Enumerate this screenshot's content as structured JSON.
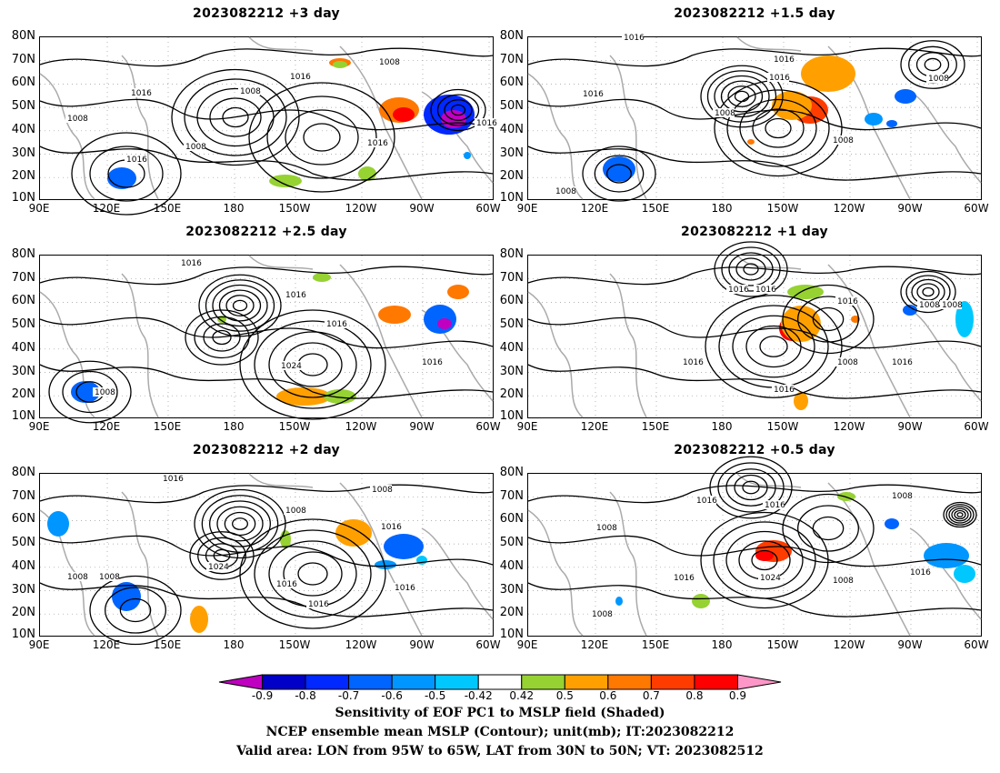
{
  "panels": [
    {
      "title": "2023082212 +3 day",
      "contour_labels": [
        "1008",
        "1016",
        "1008",
        "1016",
        "1008",
        "1016",
        "1016",
        "1016",
        "1008"
      ]
    },
    {
      "title": "2023082212 +1.5 day",
      "contour_labels": [
        "1016",
        "1016",
        "1016",
        "1008",
        "1008",
        "1016",
        "1008",
        "1008"
      ]
    },
    {
      "title": "2023082212 +2.5 day",
      "contour_labels": [
        "1016",
        "1016",
        "1016",
        "1024",
        "1016",
        "1008"
      ]
    },
    {
      "title": "2023082212 +1 day",
      "contour_labels": [
        "1016",
        "1016",
        "1016",
        "1008",
        "1016",
        "1016",
        "1008",
        "1016",
        "1008"
      ]
    },
    {
      "title": "2023082212 +2 day",
      "contour_labels": [
        "1016",
        "1008",
        "1016",
        "1016",
        "1008",
        "1008",
        "1024",
        "1016",
        "1016",
        "1008"
      ]
    },
    {
      "title": "2023082212 +0.5 day",
      "contour_labels": [
        "1016",
        "1016",
        "1008",
        "1008",
        "1016",
        "1024",
        "1008",
        "1016",
        "1008"
      ]
    }
  ],
  "lat_labels": [
    "80N",
    "70N",
    "60N",
    "50N",
    "40N",
    "30N",
    "20N",
    "10N"
  ],
  "lon_labels": [
    "90E",
    "120E",
    "150E",
    "180",
    "150W",
    "120W",
    "90W",
    "60W"
  ],
  "colorbar": {
    "labels": [
      "-0.9",
      "-0.8",
      "-0.7",
      "-0.6",
      "-0.5",
      "-0.42",
      "0.42",
      "0.5",
      "0.6",
      "0.7",
      "0.8",
      "0.9"
    ],
    "colors": [
      "#c000c0",
      "#0000c8",
      "#0028ff",
      "#0064ff",
      "#0096ff",
      "#00c8ff",
      "#ffffff",
      "#96d232",
      "#ffa000",
      "#ff7800",
      "#ff3c00",
      "#ff0000",
      "#ff96c8"
    ]
  },
  "caption": {
    "line1": "Sensitivity of EOF PC1 to MSLP field (Shaded)",
    "line2": "NCEP ensemble mean MSLP (Contour); unit(mb); IT:2023082212",
    "line3": "Valid area: LON from 95W to 65W, LAT from 30N to 50N; VT: 2023082512"
  }
}
